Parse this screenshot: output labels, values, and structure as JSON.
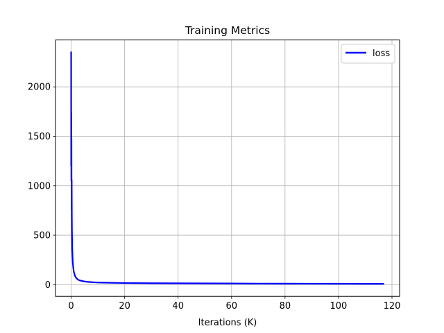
{
  "chart_data": {
    "type": "line",
    "title": "Training Metrics",
    "xlabel": "Iterations (K)",
    "ylabel": "",
    "xlim": [
      -5.85,
      122.85
    ],
    "ylim": [
      -118,
      2474
    ],
    "xticks": [
      0,
      20,
      40,
      60,
      80,
      100,
      120
    ],
    "yticks": [
      0,
      500,
      1000,
      1500,
      2000
    ],
    "grid": true,
    "legend_position": "upper right",
    "series": [
      {
        "name": "loss",
        "color": "#0000ff",
        "x": [
          0,
          0.02,
          0.05,
          0.08,
          0.12,
          0.16,
          0.2,
          0.25,
          0.3,
          0.35,
          0.4,
          0.5,
          0.6,
          0.7,
          0.8,
          1.0,
          1.2,
          1.5,
          2,
          2.5,
          3,
          4,
          5,
          6,
          8,
          10,
          15,
          20,
          30,
          40,
          50,
          60,
          70,
          80,
          90,
          100,
          110,
          117
        ],
        "y": [
          2356,
          1200,
          1740,
          1050,
          1480,
          760,
          1060,
          700,
          540,
          460,
          360,
          290,
          230,
          200,
          170,
          130,
          110,
          85,
          65,
          52,
          45,
          38,
          33,
          29,
          25,
          22,
          19,
          17,
          15,
          14,
          13,
          12,
          11,
          10.5,
          10,
          9.5,
          9,
          9
        ]
      }
    ]
  }
}
